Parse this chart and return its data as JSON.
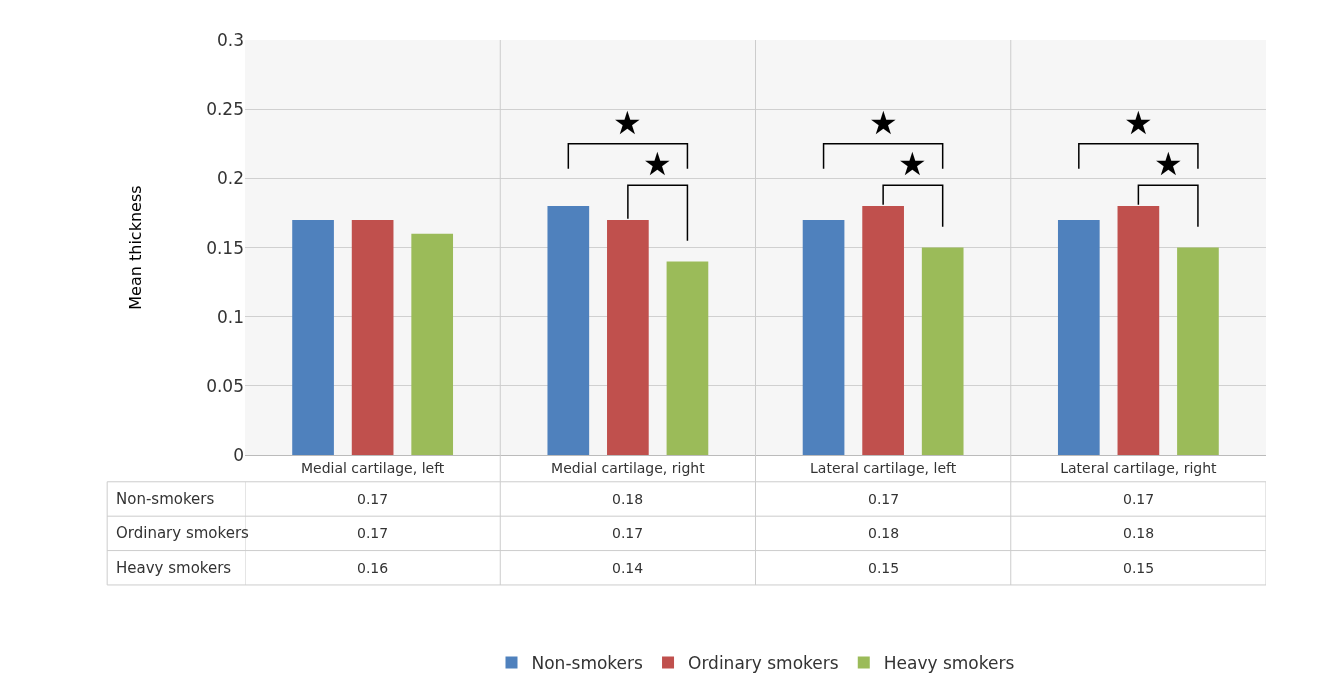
{
  "chart_data": {
    "type": "bar",
    "ylabel": "Mean thickness",
    "categories": [
      "Medial cartilage, left",
      "Medial cartilage, right",
      "Lateral cartilage, left",
      "Lateral cartilage, right"
    ],
    "series": [
      {
        "name": "Non-smokers",
        "color": "#4f81bd",
        "values": [
          0.17,
          0.18,
          0.17,
          0.17
        ]
      },
      {
        "name": "Ordinary smokers",
        "color": "#c0504d",
        "values": [
          0.17,
          0.17,
          0.18,
          0.18
        ]
      },
      {
        "name": "Heavy smokers",
        "color": "#9bbb59",
        "values": [
          0.16,
          0.14,
          0.15,
          0.15
        ]
      }
    ],
    "ylim": [
      0,
      0.3
    ],
    "yticks": [
      0,
      0.05,
      0.1,
      0.15,
      0.2,
      0.25,
      0.3
    ],
    "grid": "y",
    "legend": "bottom",
    "data_labels": true,
    "annotations": [
      "★",
      "★",
      "★",
      "★",
      "★",
      "★"
    ]
  }
}
